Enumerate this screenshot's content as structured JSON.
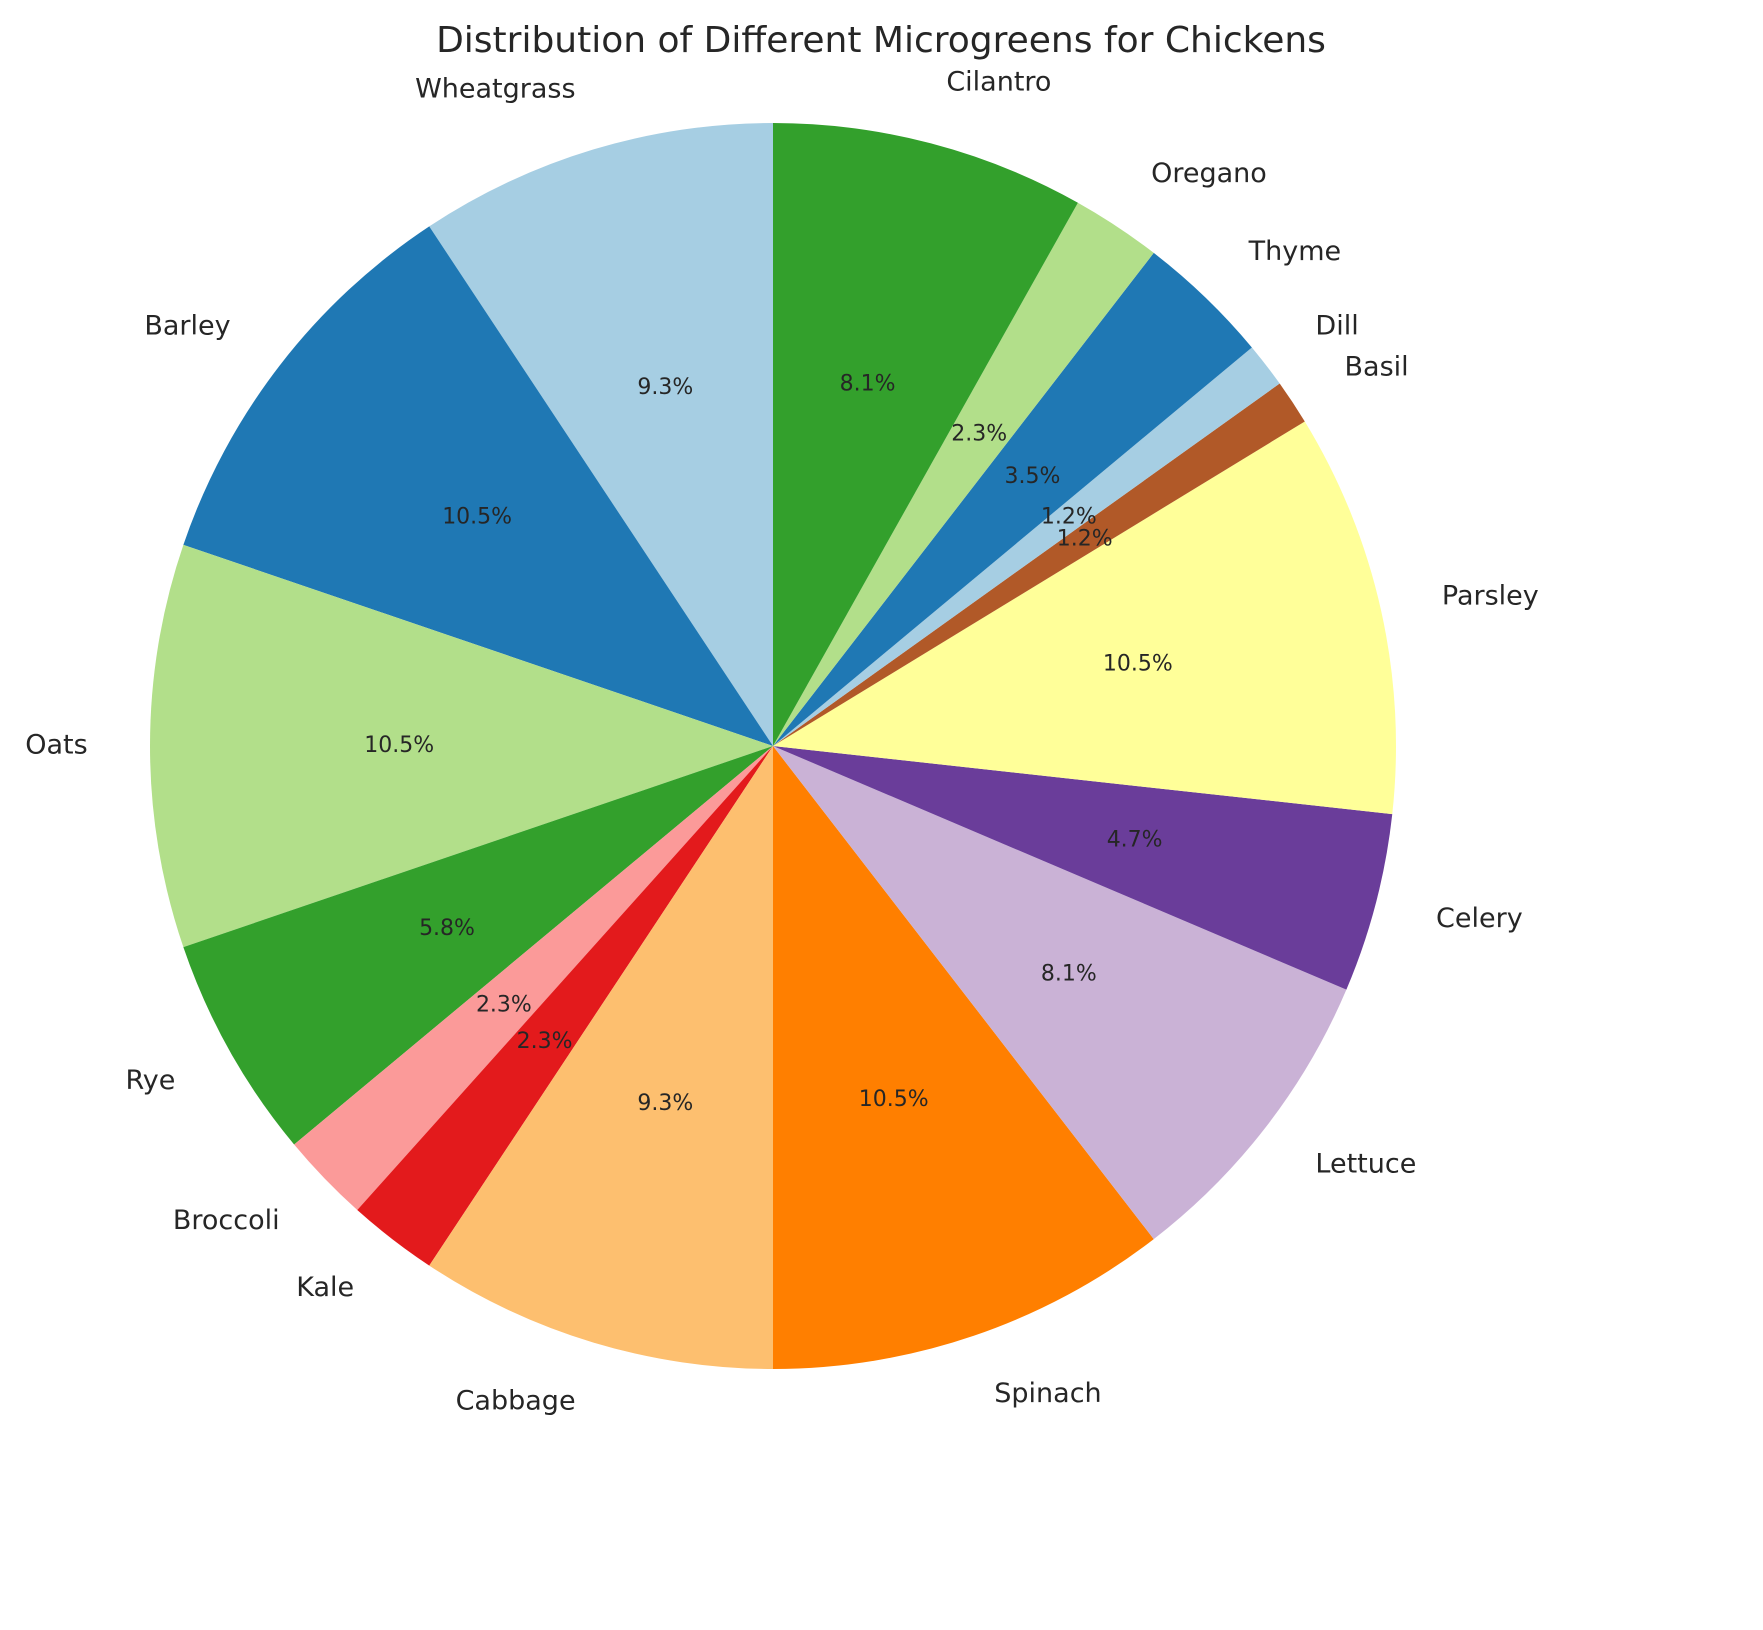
{
  "chart_data": {
    "type": "pie",
    "title": "Distribution of Different Microgreens for Chickens",
    "start_angle": 90,
    "direction": "counterclockwise",
    "categories": [
      "Wheatgrass",
      "Barley",
      "Oats",
      "Rye",
      "Broccoli",
      "Kale",
      "Cabbage",
      "Spinach",
      "Lettuce",
      "Celery",
      "Parsley",
      "Basil",
      "Dill",
      "Thyme",
      "Oregano",
      "Cilantro"
    ],
    "values": [
      8,
      9,
      9,
      5,
      2,
      2,
      8,
      9,
      7,
      4,
      9,
      1,
      1,
      3,
      2,
      7
    ],
    "percent_labels": [
      "9.3%",
      "10.5%",
      "10.5%",
      "5.8%",
      "2.3%",
      "2.3%",
      "9.3%",
      "10.5%",
      "8.1%",
      "4.7%",
      "10.5%",
      "1.2%",
      "1.2%",
      "3.5%",
      "2.3%",
      "8.1%"
    ],
    "colors": [
      "#a6cee3",
      "#1f78b4",
      "#b2df8a",
      "#33a02c",
      "#fb9a99",
      "#e31a1c",
      "#fdbf6f",
      "#ff7f00",
      "#cab2d6",
      "#6a3d9a",
      "#ffff99",
      "#b15928",
      "#a6cee3",
      "#1f78b4",
      "#b2df8a",
      "#33a02c"
    ],
    "legend": "none"
  }
}
